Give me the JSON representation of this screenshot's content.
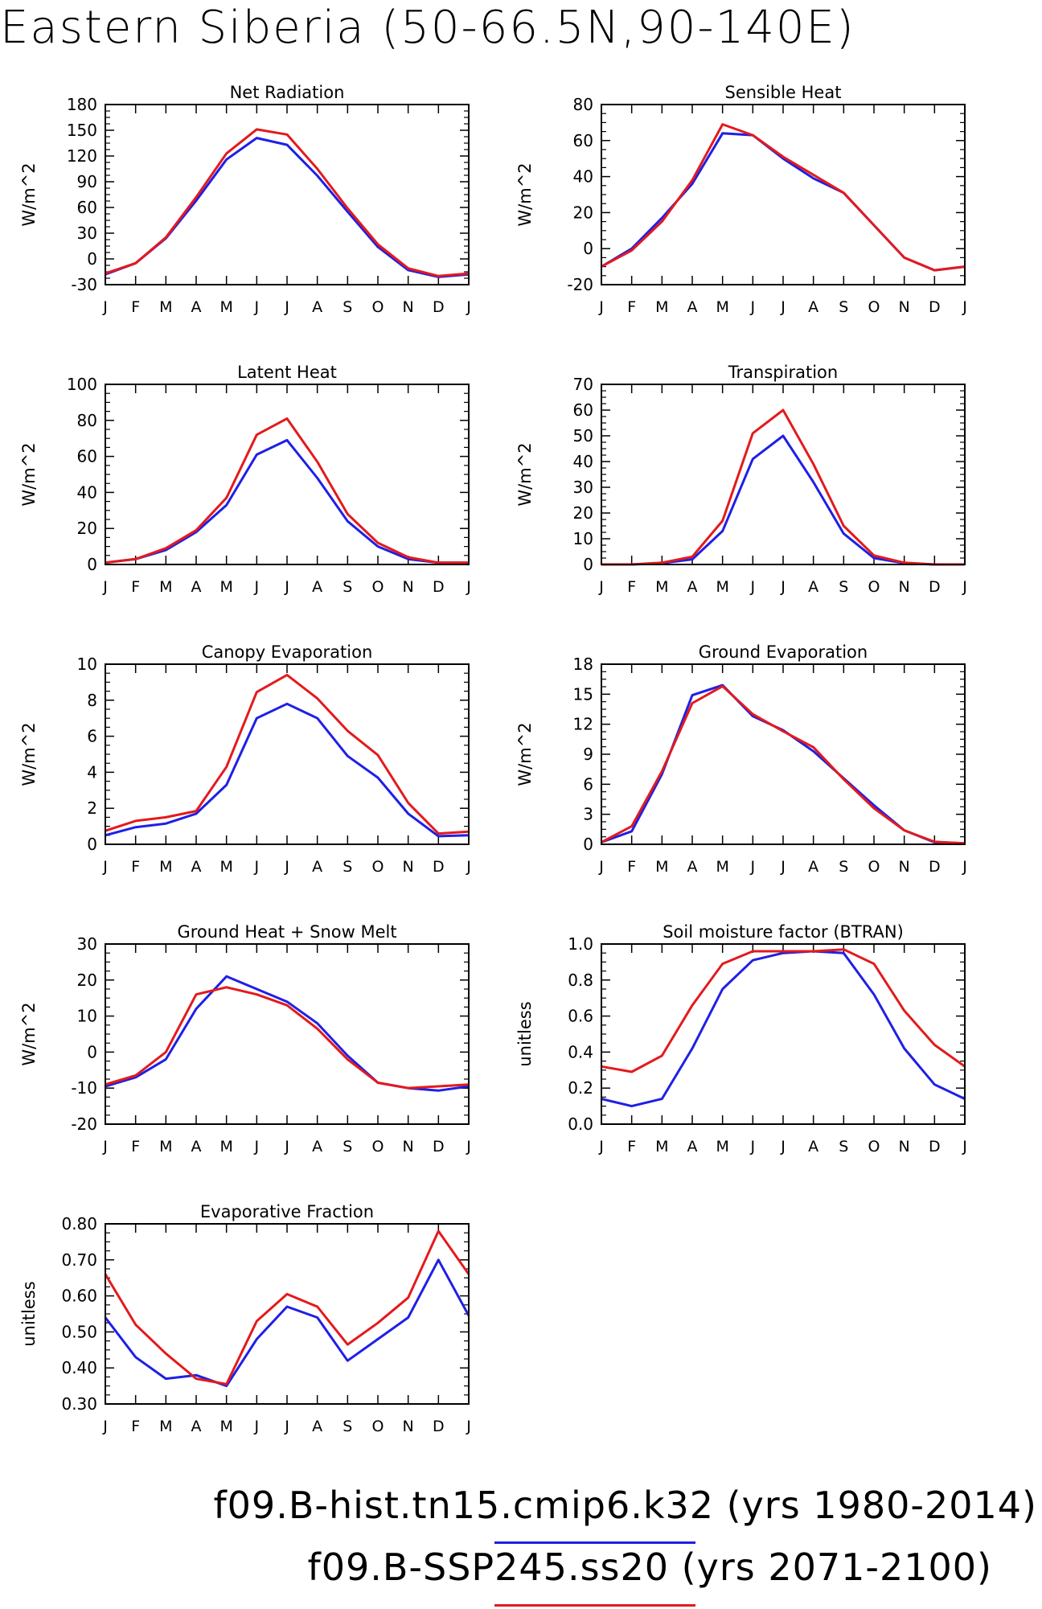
{
  "page_title": "Eastern Siberia (50-66.5N,90-140E)",
  "colors": {
    "hist": "#1f1fe6",
    "ssp": "#e31a1c",
    "axis": "#000000"
  },
  "legend": [
    {
      "label": "f09.B-hist.tn15.cmip6.k32 (yrs 1980-2014)",
      "color": "#1f1fe6"
    },
    {
      "label": "f09.B-SSP245.ss20 (yrs 2071-2100)",
      "color": "#e31a1c"
    }
  ],
  "chart_data": [
    {
      "type": "line",
      "title": "Net Radiation",
      "ylabel": "W/m^2",
      "categories": [
        "J",
        "F",
        "M",
        "A",
        "M",
        "J",
        "J",
        "A",
        "S",
        "O",
        "N",
        "D",
        "J"
      ],
      "ylim": [
        -30,
        180
      ],
      "yticks": [
        -30,
        0,
        30,
        60,
        90,
        120,
        150,
        180
      ],
      "ytick_labels": [
        "-30",
        "0",
        "30",
        "60",
        "90",
        "120",
        "150",
        "180"
      ],
      "series": [
        {
          "key": "hist",
          "values": [
            -18,
            -5,
            24,
            68,
            116,
            141,
            133,
            97,
            55,
            14,
            -13,
            -21,
            -18
          ]
        },
        {
          "key": "ssp",
          "values": [
            -17,
            -5,
            25,
            72,
            123,
            151,
            145,
            105,
            59,
            17,
            -11,
            -20,
            -17
          ]
        }
      ]
    },
    {
      "type": "line",
      "title": "Sensible Heat",
      "ylabel": "W/m^2",
      "categories": [
        "J",
        "F",
        "M",
        "A",
        "M",
        "J",
        "J",
        "A",
        "S",
        "O",
        "N",
        "D",
        "J"
      ],
      "ylim": [
        -20,
        80
      ],
      "yticks": [
        -20,
        0,
        20,
        40,
        60,
        80
      ],
      "ytick_labels": [
        "-20",
        "0",
        "20",
        "40",
        "60",
        "80"
      ],
      "series": [
        {
          "key": "hist",
          "values": [
            -10,
            0,
            17,
            36,
            64,
            63,
            50,
            39,
            31,
            13,
            -5,
            -12,
            -10
          ]
        },
        {
          "key": "ssp",
          "values": [
            -10,
            -1,
            15,
            38,
            69,
            63,
            51,
            41,
            31,
            13,
            -5,
            -12,
            -10
          ]
        }
      ]
    },
    {
      "type": "line",
      "title": "Latent Heat",
      "ylabel": "W/m^2",
      "categories": [
        "J",
        "F",
        "M",
        "A",
        "M",
        "J",
        "J",
        "A",
        "S",
        "O",
        "N",
        "D",
        "J"
      ],
      "ylim": [
        0,
        100
      ],
      "yticks": [
        0,
        20,
        40,
        60,
        80,
        100
      ],
      "ytick_labels": [
        "0",
        "20",
        "40",
        "60",
        "80",
        "100"
      ],
      "series": [
        {
          "key": "hist",
          "values": [
            1,
            3,
            8,
            18,
            33,
            61,
            69,
            48,
            24,
            10,
            3,
            1,
            1
          ]
        },
        {
          "key": "ssp",
          "values": [
            1,
            3,
            9,
            19,
            37,
            72,
            81,
            57,
            28,
            12,
            4,
            1,
            1
          ]
        }
      ]
    },
    {
      "type": "line",
      "title": "Transpiration",
      "ylabel": "W/m^2",
      "categories": [
        "J",
        "F",
        "M",
        "A",
        "M",
        "J",
        "J",
        "A",
        "S",
        "O",
        "N",
        "D",
        "J"
      ],
      "ylim": [
        0,
        70
      ],
      "yticks": [
        0,
        10,
        20,
        30,
        40,
        50,
        60,
        70
      ],
      "ytick_labels": [
        "0",
        "10",
        "20",
        "30",
        "40",
        "50",
        "60",
        "70"
      ],
      "series": [
        {
          "key": "hist",
          "values": [
            0,
            0,
            0.5,
            2,
            13,
            41,
            50,
            32,
            12,
            2.5,
            0.5,
            0,
            0
          ]
        },
        {
          "key": "ssp",
          "values": [
            0,
            0,
            0.7,
            3,
            17,
            51,
            60,
            39,
            15,
            3.5,
            0.7,
            0,
            0
          ]
        }
      ]
    },
    {
      "type": "line",
      "title": "Canopy Evaporation",
      "ylabel": "W/m^2",
      "categories": [
        "J",
        "F",
        "M",
        "A",
        "M",
        "J",
        "J",
        "A",
        "S",
        "O",
        "N",
        "D",
        "J"
      ],
      "ylim": [
        0,
        10
      ],
      "yticks": [
        0,
        2,
        4,
        6,
        8,
        10
      ],
      "ytick_labels": [
        "0",
        "2",
        "4",
        "6",
        "8",
        "10"
      ],
      "series": [
        {
          "key": "hist",
          "values": [
            0.5,
            0.95,
            1.15,
            1.7,
            3.3,
            7.0,
            7.8,
            7.0,
            4.9,
            3.7,
            1.7,
            0.45,
            0.5
          ]
        },
        {
          "key": "ssp",
          "values": [
            0.75,
            1.3,
            1.5,
            1.85,
            4.3,
            8.45,
            9.4,
            8.1,
            6.3,
            4.95,
            2.3,
            0.6,
            0.7
          ]
        }
      ]
    },
    {
      "type": "line",
      "title": "Ground Evaporation",
      "ylabel": "W/m^2",
      "categories": [
        "J",
        "F",
        "M",
        "A",
        "M",
        "J",
        "J",
        "A",
        "S",
        "O",
        "N",
        "D",
        "J"
      ],
      "ylim": [
        0,
        18
      ],
      "yticks": [
        0,
        3,
        6,
        9,
        12,
        15,
        18
      ],
      "ytick_labels": [
        "0",
        "3",
        "6",
        "9",
        "12",
        "15",
        "18"
      ],
      "series": [
        {
          "key": "hist",
          "values": [
            0.2,
            1.3,
            7,
            14.9,
            15.9,
            12.8,
            11.4,
            9.3,
            6.6,
            3.9,
            1.4,
            0.2,
            0.1
          ]
        },
        {
          "key": "ssp",
          "values": [
            0.2,
            1.8,
            7.3,
            14.1,
            15.8,
            13.0,
            11.3,
            9.7,
            6.5,
            3.6,
            1.4,
            0.25,
            0.1
          ]
        }
      ]
    },
    {
      "type": "line",
      "title": "Ground Heat + Snow Melt",
      "ylabel": "W/m^2",
      "categories": [
        "J",
        "F",
        "M",
        "A",
        "M",
        "J",
        "J",
        "A",
        "S",
        "O",
        "N",
        "D",
        "J"
      ],
      "ylim": [
        -20,
        30
      ],
      "yticks": [
        -20,
        -10,
        0,
        10,
        20,
        30
      ],
      "ytick_labels": [
        "-20",
        "-10",
        "0",
        "10",
        "20",
        "30"
      ],
      "series": [
        {
          "key": "hist",
          "values": [
            -9.5,
            -7,
            -2,
            12,
            21,
            17.5,
            14,
            8,
            -1,
            -8.5,
            -10,
            -10.7,
            -9.5
          ]
        },
        {
          "key": "ssp",
          "values": [
            -9,
            -6.5,
            0,
            16,
            18,
            16,
            13,
            6.5,
            -2,
            -8.5,
            -10,
            -9.5,
            -9
          ]
        }
      ]
    },
    {
      "type": "line",
      "title": "Soil moisture factor (BTRAN)",
      "ylabel": "unitless",
      "categories": [
        "J",
        "F",
        "M",
        "A",
        "M",
        "J",
        "J",
        "A",
        "S",
        "O",
        "N",
        "D",
        "J"
      ],
      "ylim": [
        0,
        1
      ],
      "yticks": [
        0,
        0.2,
        0.4,
        0.6,
        0.8,
        1.0
      ],
      "ytick_labels": [
        "0.0",
        "0.2",
        "0.4",
        "0.6",
        "0.8",
        "1.0"
      ],
      "series": [
        {
          "key": "hist",
          "values": [
            0.14,
            0.1,
            0.14,
            0.42,
            0.75,
            0.91,
            0.95,
            0.96,
            0.95,
            0.72,
            0.42,
            0.22,
            0.14
          ]
        },
        {
          "key": "ssp",
          "values": [
            0.32,
            0.29,
            0.38,
            0.66,
            0.89,
            0.96,
            0.96,
            0.96,
            0.97,
            0.89,
            0.63,
            0.44,
            0.32
          ]
        }
      ]
    },
    {
      "type": "line",
      "title": "Evaporative Fraction",
      "ylabel": "unitless",
      "categories": [
        "J",
        "F",
        "M",
        "A",
        "M",
        "J",
        "J",
        "A",
        "S",
        "O",
        "N",
        "D",
        "J"
      ],
      "ylim": [
        0.3,
        0.8
      ],
      "yticks": [
        0.3,
        0.4,
        0.5,
        0.6,
        0.7,
        0.8
      ],
      "ytick_labels": [
        "0.30",
        "0.40",
        "0.50",
        "0.60",
        "0.70",
        "0.80"
      ],
      "series": [
        {
          "key": "hist",
          "values": [
            0.54,
            0.43,
            0.37,
            0.38,
            0.35,
            0.48,
            0.57,
            0.54,
            0.42,
            0.48,
            0.54,
            0.7,
            0.545
          ]
        },
        {
          "key": "ssp",
          "values": [
            0.66,
            0.52,
            0.44,
            0.37,
            0.355,
            0.53,
            0.605,
            0.57,
            0.465,
            0.525,
            0.595,
            0.78,
            0.66
          ]
        }
      ]
    }
  ]
}
